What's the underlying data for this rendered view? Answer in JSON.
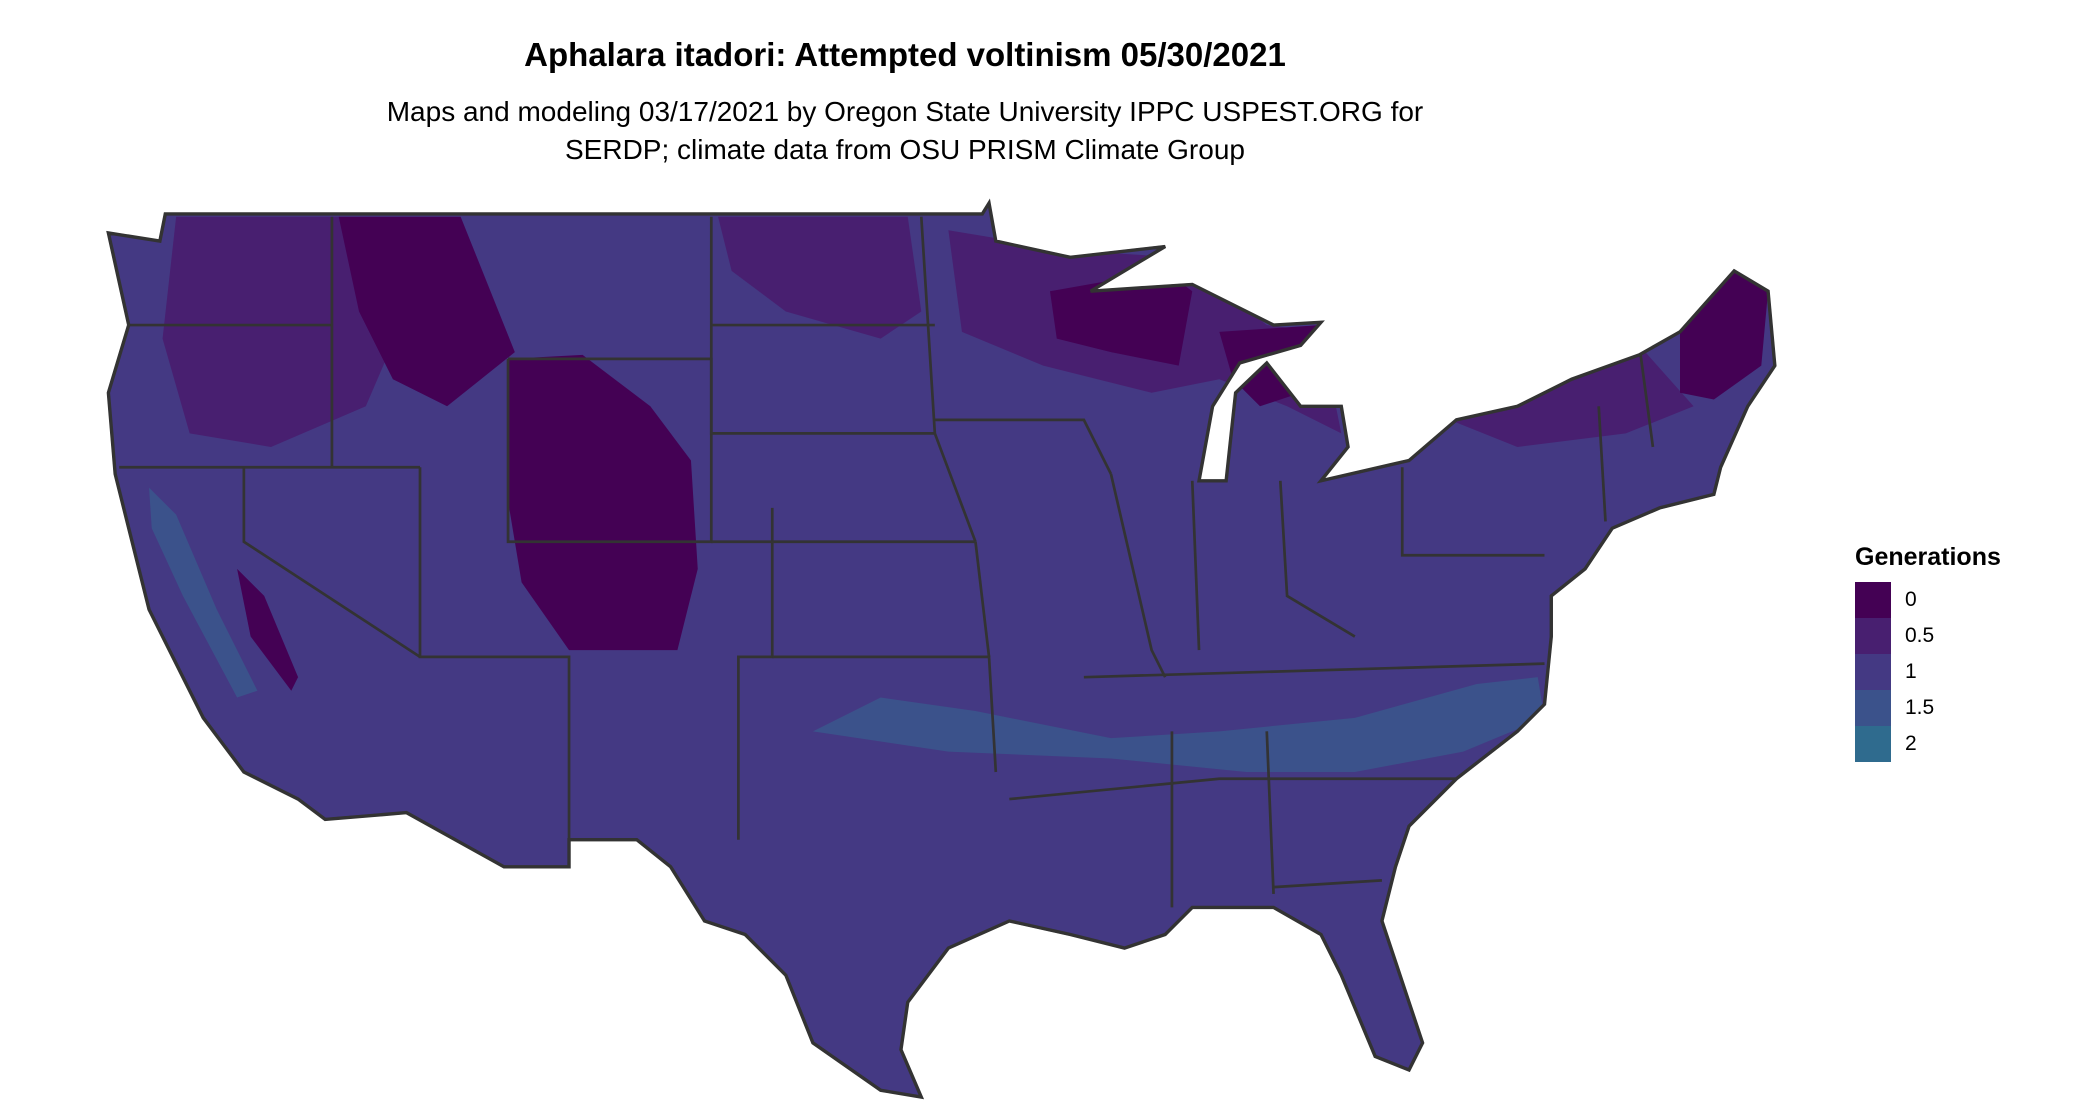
{
  "title": "Aphalara itadori: Attempted voltinism 05/30/2021",
  "subtitle_line1": "Maps and modeling 03/17/2021 by Oregon State University IPPC USPEST.ORG for",
  "subtitle_line2": "SERDP; climate data from OSU PRISM Climate Group",
  "legend": {
    "title": "Generations",
    "items": [
      {
        "label": "0",
        "color": "#440154"
      },
      {
        "label": "0.5",
        "color": "#481f70"
      },
      {
        "label": "1",
        "color": "#443983"
      },
      {
        "label": "1.5",
        "color": "#3b528b"
      },
      {
        "label": "2",
        "color": "#2f6b8e"
      }
    ]
  },
  "map": {
    "region": "contiguous United States",
    "dominant_value_color": "#443983",
    "border_color": "#333333"
  }
}
